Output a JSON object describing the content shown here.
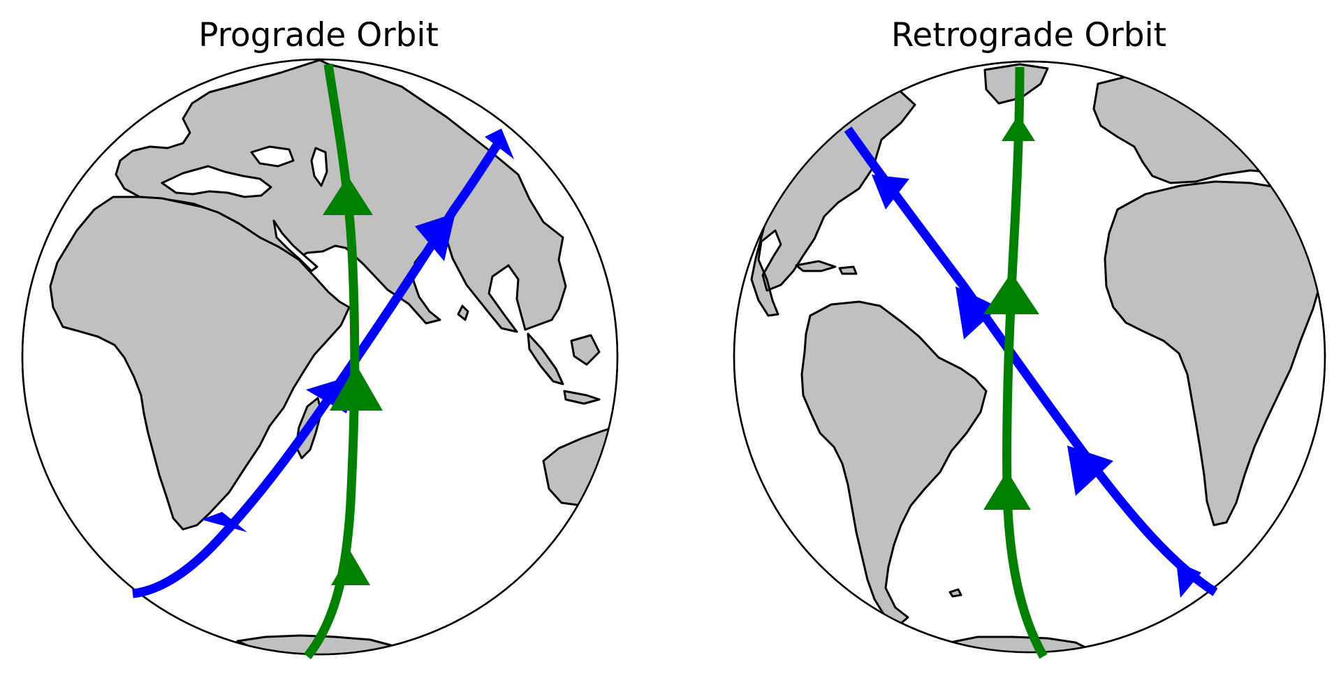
{
  "colors": {
    "ocean": "#ffffff",
    "land": "#c0c0c0",
    "outline": "#000000",
    "inclined_orbit": "#0000ff",
    "polar_orbit": "#008000"
  },
  "panels": [
    {
      "title": "Prograde Orbit",
      "view": "Africa and Indian Ocean hemisphere",
      "orbits": [
        {
          "color_key": "inclined_orbit",
          "arrow_direction": "northeast"
        },
        {
          "color_key": "polar_orbit",
          "arrow_direction": "north"
        }
      ]
    },
    {
      "title": "Retrograde Orbit",
      "view": "Americas and Atlantic Ocean hemisphere",
      "orbits": [
        {
          "color_key": "inclined_orbit",
          "arrow_direction": "northwest"
        },
        {
          "color_key": "polar_orbit",
          "arrow_direction": "north"
        }
      ]
    }
  ]
}
